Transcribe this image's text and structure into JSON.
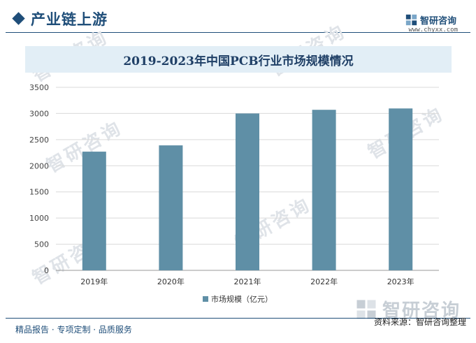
{
  "header": {
    "section_title": "产业链上游",
    "brand_name": "智研咨询",
    "brand_url": "www.chyxx.com"
  },
  "chart_data": {
    "type": "bar",
    "title": "2019-2023年中国PCB行业市场规模情况",
    "categories": [
      "2019年",
      "2020年",
      "2021年",
      "2022年",
      "2023年"
    ],
    "series": [
      {
        "name": "市场规模（亿元）",
        "values": [
          2270,
          2390,
          3000,
          3070,
          3096
        ],
        "color": "#5f8fa6"
      }
    ],
    "ylim": [
      0,
      3500
    ],
    "yticks": [
      0,
      500,
      1000,
      1500,
      2000,
      2500,
      3000,
      3500
    ],
    "grid": true,
    "legend": "bottom"
  },
  "footer": {
    "left": "精品报告 · 专项定制 · 品质服务",
    "source": "资料来源：智研咨询整理"
  },
  "watermark": {
    "text": "智研咨询",
    "big_text": "智研咨询"
  }
}
